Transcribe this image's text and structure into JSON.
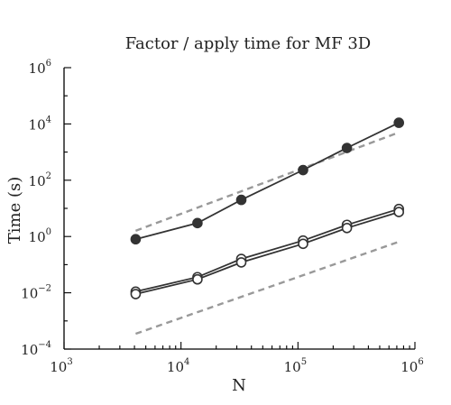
{
  "chart_data": {
    "type": "line",
    "title": "Factor / apply time for MF 3D",
    "xlabel": "N",
    "ylabel": "Time (s)",
    "xscale": "log",
    "yscale": "log",
    "xlim": [
      1000,
      1000000
    ],
    "ylim": [
      0.0001,
      1000000
    ],
    "xticks": [
      {
        "base": "10",
        "exp": "3"
      },
      {
        "base": "10",
        "exp": "4"
      },
      {
        "base": "10",
        "exp": "5"
      },
      {
        "base": "10",
        "exp": "6"
      }
    ],
    "yticks": [
      {
        "base": "10",
        "exp": "−4"
      },
      {
        "base": "10",
        "exp": "−2"
      },
      {
        "base": "10",
        "exp": "0"
      },
      {
        "base": "10",
        "exp": "2"
      },
      {
        "base": "10",
        "exp": "4"
      },
      {
        "base": "10",
        "exp": "6"
      }
    ],
    "grid": false,
    "legend": false,
    "x": [
      4096,
      13824,
      32768,
      110592,
      262144,
      729000
    ],
    "series": [
      {
        "marker": "filled-circle",
        "color": "#333333",
        "values": [
          0.8,
          3.0,
          20,
          230,
          1400,
          11000
        ]
      },
      {
        "marker": "open-circle",
        "color": "#333333",
        "values": [
          0.011,
          0.036,
          0.16,
          0.72,
          2.6,
          9.5
        ]
      },
      {
        "marker": "open-circle",
        "color": "#333333",
        "values": [
          0.009,
          0.03,
          0.12,
          0.55,
          2.0,
          7.4
        ]
      }
    ],
    "reference_lines": [
      {
        "style": "dashed",
        "color": "#999999",
        "x": [
          4096,
          729000
        ],
        "y": [
          1.6,
          5000
        ]
      },
      {
        "style": "dashed",
        "color": "#999999",
        "x": [
          4096,
          729000
        ],
        "y": [
          0.00035,
          0.65
        ]
      }
    ]
  }
}
